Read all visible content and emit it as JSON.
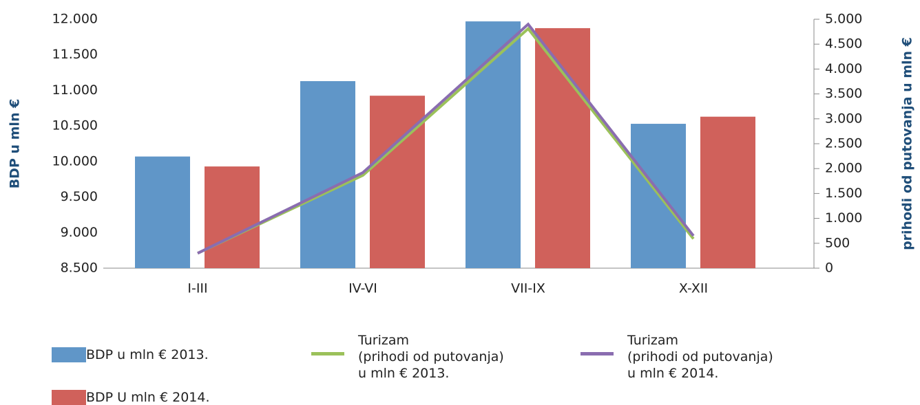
{
  "chart_data": {
    "type": "bar-line",
    "categories": [
      "I-III",
      "IV-VI",
      "VII-IX",
      "X-XII"
    ],
    "ylabel": "BDP u mln €",
    "y2label": "prihodi od putovanja u mln €",
    "ylim": [
      8500,
      12000
    ],
    "yticks": [
      {
        "value": 8500,
        "label": "8.500"
      },
      {
        "value": 9000,
        "label": "9.000"
      },
      {
        "value": 9500,
        "label": "9.500"
      },
      {
        "value": 10000,
        "label": "10.000"
      },
      {
        "value": 10500,
        "label": "10.500"
      },
      {
        "value": 11000,
        "label": "11.000"
      },
      {
        "value": 11500,
        "label": "11.500"
      },
      {
        "value": 12000,
        "label": "12.000"
      }
    ],
    "y2lim": [
      0,
      5000
    ],
    "y2ticks": [
      0,
      500,
      {
        "value": 1000,
        "label": "1.000"
      },
      {
        "value": 1500,
        "label": "1.500"
      },
      {
        "value": 2000,
        "label": "2.000"
      },
      {
        "value": 2500,
        "label": "2.500"
      },
      {
        "value": 3000,
        "label": "3.000"
      },
      {
        "value": 3500,
        "label": "3.500"
      },
      {
        "value": 4000,
        "label": "4.000"
      },
      {
        "value": 4500,
        "label": "4.500"
      },
      {
        "value": 5000,
        "label": "5.000"
      }
    ],
    "series": [
      {
        "name": "BDP u mln € 2013.",
        "type": "bar",
        "color": "#6096c8",
        "values": [
          10070,
          11130,
          11970,
          10530
        ]
      },
      {
        "name": "BDP U mln € 2014.",
        "type": "bar",
        "color": "#d0615b",
        "values": [
          9930,
          10925,
          11875,
          10630
        ]
      },
      {
        "name": "Turizam\n(prihodi od putovanja)\nu mln € 2013.",
        "type": "line",
        "axis": "y2",
        "color": "#9bc15a",
        "values": [
          300,
          1865,
          4810,
          590
        ]
      },
      {
        "name": "Turizam\n(prihodi od putovanja)\nu mln € 2014.",
        "type": "line",
        "axis": "y2",
        "color": "#8a6db0",
        "values": [
          300,
          1920,
          4900,
          650
        ]
      }
    ]
  }
}
